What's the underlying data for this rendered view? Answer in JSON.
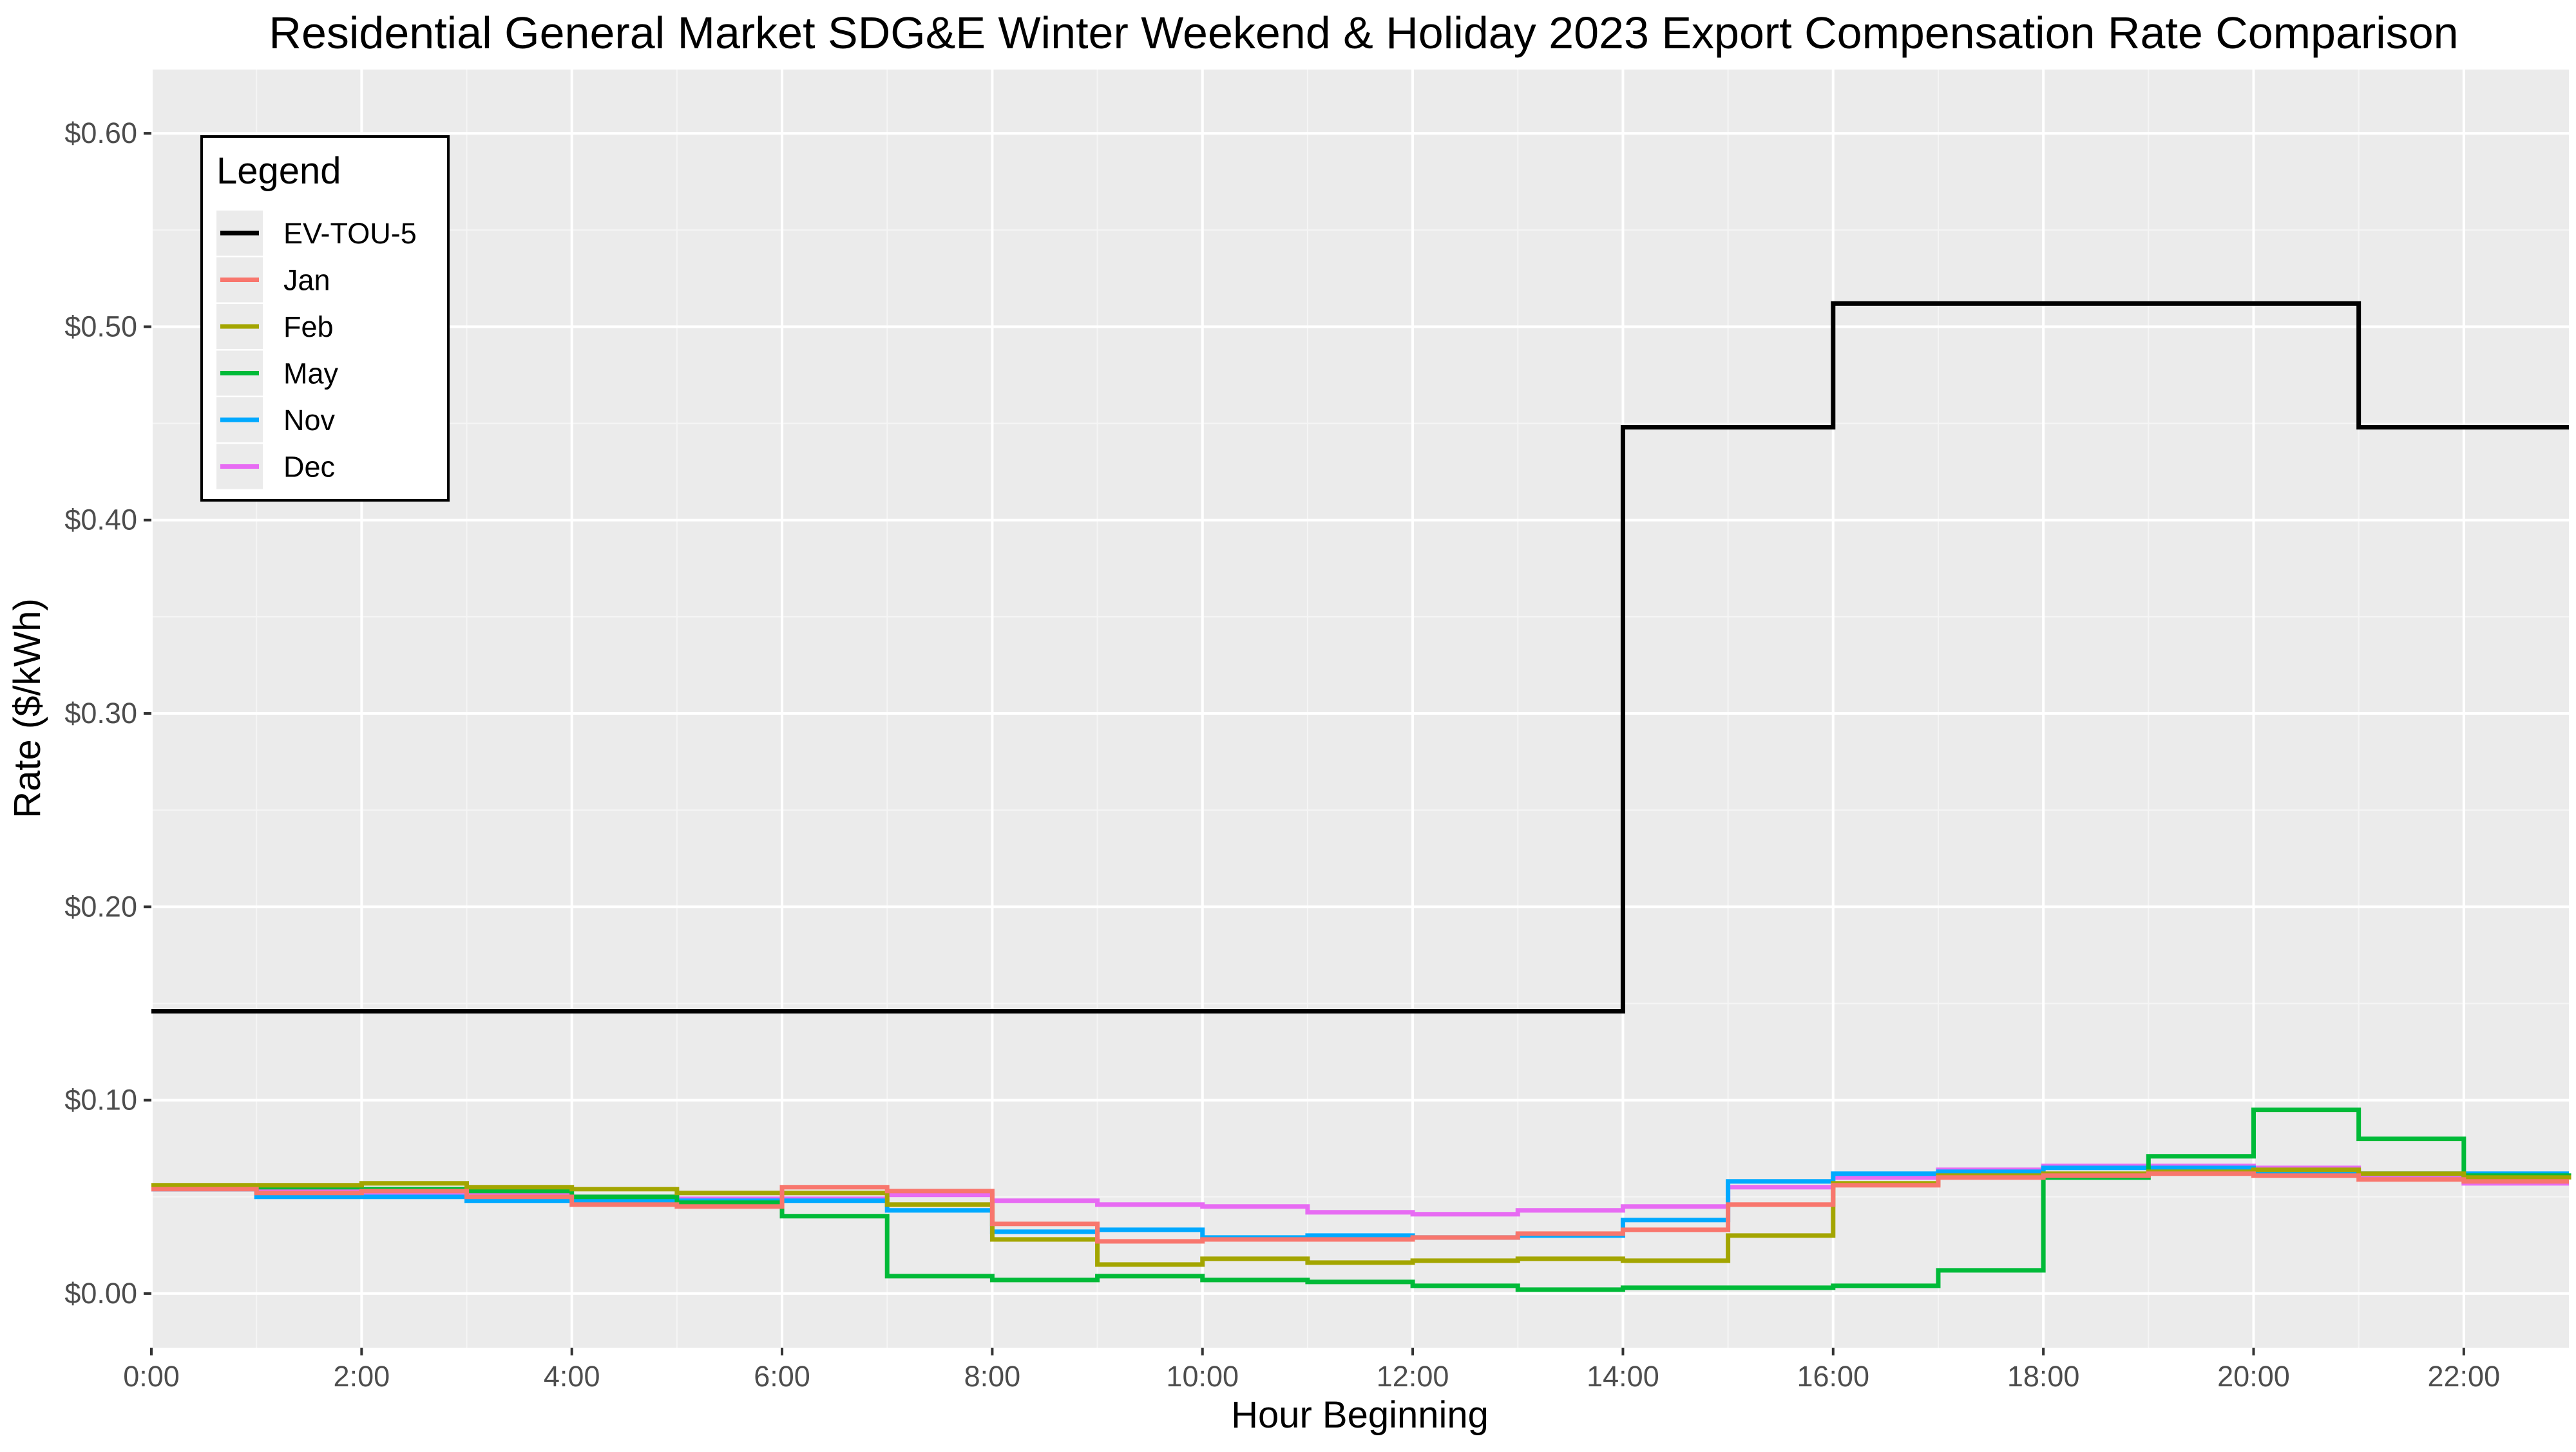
{
  "chart_data": {
    "type": "line",
    "step": true,
    "title": "Residential General Market SDG&E Winter Weekend & Holiday 2023 Export Compensation Rate Comparison",
    "xlabel": "Hour Beginning",
    "ylabel": "Rate ($/kWh)",
    "xlim": [
      0,
      23
    ],
    "ylim": [
      -0.028,
      0.633
    ],
    "x_ticks": [
      "0:00",
      "2:00",
      "4:00",
      "6:00",
      "8:00",
      "10:00",
      "12:00",
      "14:00",
      "16:00",
      "18:00",
      "20:00",
      "22:00"
    ],
    "y_ticks": [
      "$0.00",
      "$0.10",
      "$0.20",
      "$0.30",
      "$0.40",
      "$0.50",
      "$0.60"
    ],
    "grid": true,
    "legend_title": "Legend",
    "legend_position": "top-left inside",
    "x": [
      0,
      1,
      2,
      3,
      4,
      5,
      6,
      7,
      8,
      9,
      10,
      11,
      12,
      13,
      14,
      15,
      16,
      17,
      18,
      19,
      20,
      21,
      22,
      23
    ],
    "series": [
      {
        "name": "EV-TOU-5",
        "color": "#000000",
        "values": [
          0.146,
          0.146,
          0.146,
          0.146,
          0.146,
          0.146,
          0.146,
          0.146,
          0.146,
          0.146,
          0.146,
          0.146,
          0.146,
          0.146,
          0.448,
          0.448,
          0.512,
          0.512,
          0.512,
          0.512,
          0.512,
          0.448,
          0.448,
          0.448
        ]
      },
      {
        "name": "Jan",
        "color": "#F8766D",
        "values": [
          0.054,
          0.052,
          0.053,
          0.05,
          0.046,
          0.045,
          0.055,
          0.053,
          0.036,
          0.027,
          0.028,
          0.028,
          0.029,
          0.031,
          0.033,
          0.046,
          0.056,
          0.06,
          0.061,
          0.062,
          0.061,
          0.059,
          0.058,
          0.058
        ]
      },
      {
        "name": "Feb",
        "color": "#A3A500",
        "values": [
          0.056,
          0.056,
          0.057,
          0.055,
          0.054,
          0.052,
          0.052,
          0.046,
          0.028,
          0.015,
          0.018,
          0.016,
          0.017,
          0.018,
          0.017,
          0.03,
          0.057,
          0.061,
          0.062,
          0.063,
          0.064,
          0.062,
          0.06,
          0.059
        ]
      },
      {
        "name": "May",
        "color": "#00BA38",
        "values": [
          0.055,
          0.055,
          0.054,
          0.053,
          0.05,
          0.047,
          0.04,
          0.009,
          0.007,
          0.009,
          0.007,
          0.006,
          0.004,
          0.002,
          0.003,
          0.003,
          0.004,
          0.012,
          0.06,
          0.071,
          0.095,
          0.08,
          0.061,
          0.06
        ]
      },
      {
        "name": "Nov",
        "color": "#00A9FF",
        "values": [
          0.054,
          0.05,
          0.05,
          0.048,
          0.048,
          0.048,
          0.048,
          0.043,
          0.032,
          0.033,
          0.029,
          0.03,
          0.029,
          0.03,
          0.038,
          0.058,
          0.062,
          0.063,
          0.065,
          0.065,
          0.063,
          0.062,
          0.062,
          0.062
        ]
      },
      {
        "name": "Dec",
        "color": "#E76BF3",
        "values": [
          0.054,
          0.053,
          0.052,
          0.051,
          0.05,
          0.049,
          0.049,
          0.051,
          0.048,
          0.046,
          0.045,
          0.042,
          0.041,
          0.043,
          0.045,
          0.055,
          0.06,
          0.064,
          0.066,
          0.066,
          0.065,
          0.061,
          0.057,
          0.057
        ]
      }
    ]
  }
}
